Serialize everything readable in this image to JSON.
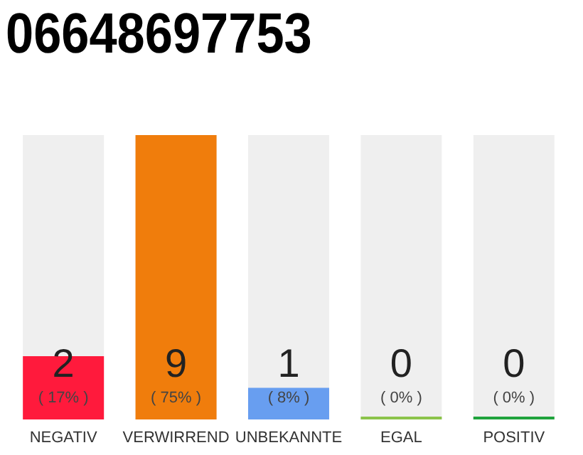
{
  "chart_data": {
    "type": "bar",
    "title": "06648697753",
    "categories": [
      "NEGATIV",
      "VERWIRREND",
      "UNBEKANNTE",
      "EGAL",
      "POSITIV"
    ],
    "values": [
      2,
      9,
      1,
      0,
      0
    ],
    "colors": [
      "#ff1a3c",
      "#f07d0c",
      "#689ef0",
      "#8bc34a",
      "#1fa33c"
    ],
    "value_labels": [
      "2",
      "9",
      "1",
      "0",
      "0"
    ],
    "annotations": [
      "( 17% )",
      "( 75% )",
      "( 8% )",
      "( 0% )",
      "( 0% )"
    ],
    "grid": false,
    "legend": false
  }
}
